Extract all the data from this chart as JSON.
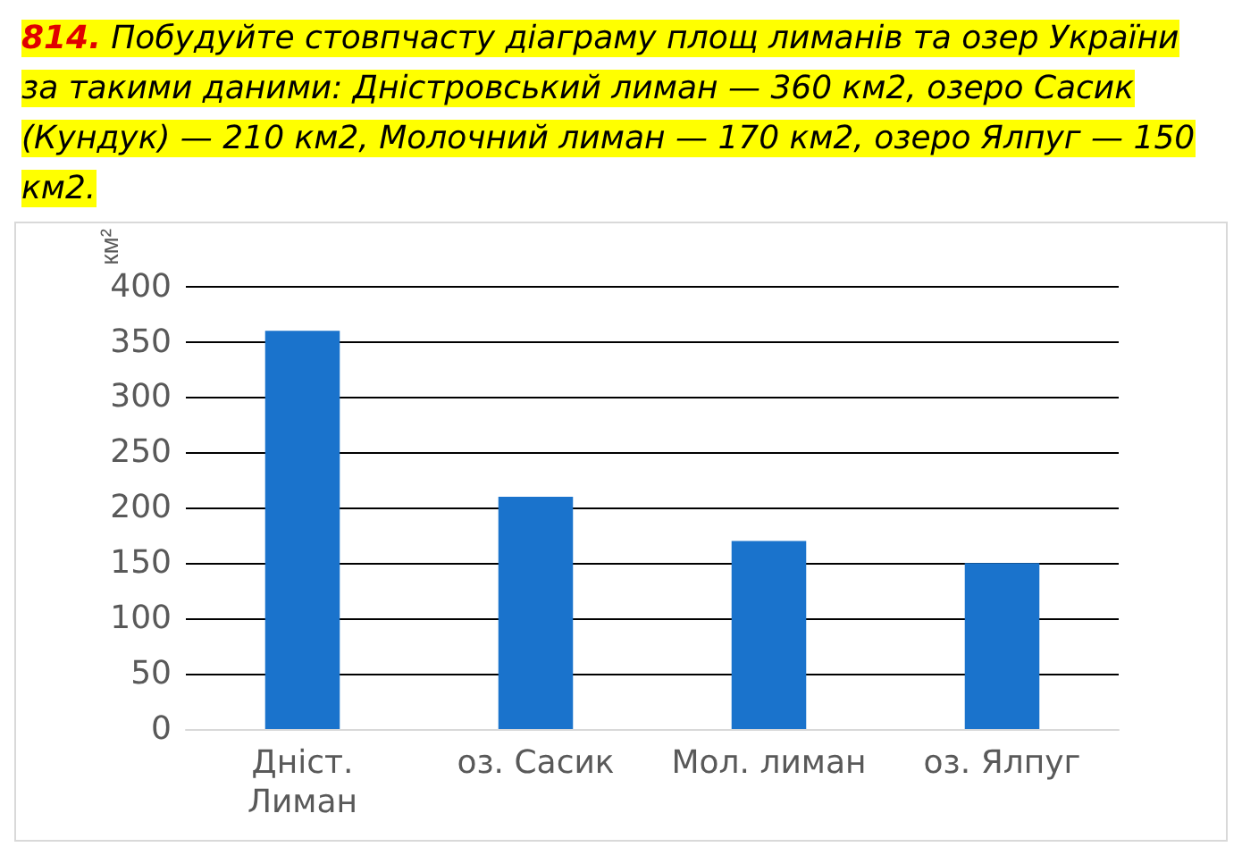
{
  "chart_data": {
    "type": "bar",
    "title": "814. Побудуйте стовпчасту діаграму площ лиманів та озер України за такими даними: Дністровський лиман — 360 км2, озеро Сасик (Кундук) — 210 км2, Молочний лиман — 170 км2, озеро Ялпуг — 150 км2.",
    "ylabel": "км²",
    "categories": [
      "Дніст.\nЛиман",
      "оз. Сасик",
      "Мол. лиман",
      "оз. Ялпуг"
    ],
    "values": [
      360,
      210,
      170,
      150
    ],
    "color": "#1a73cc",
    "ylim": [
      0,
      400
    ],
    "yticks": [
      0,
      50,
      100,
      150,
      200,
      250,
      300,
      350,
      400
    ],
    "grid": "y"
  }
}
